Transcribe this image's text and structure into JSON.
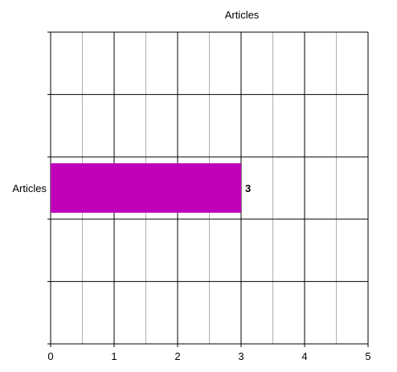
{
  "chart_data": {
    "type": "bar",
    "orientation": "horizontal",
    "title": "Articles",
    "categories": [
      "Articles"
    ],
    "series": [
      {
        "values": [
          3
        ],
        "color": "#C000B8"
      }
    ],
    "data_labels": [
      "3"
    ],
    "xlim": [
      0,
      5
    ],
    "x_ticks": [
      "0",
      "1",
      "2",
      "3",
      "4",
      "5"
    ],
    "grid": "on",
    "minor_grid": "on",
    "legend": "none"
  },
  "colors": {
    "major_grid": "#000000",
    "minor_grid": "#b0b0b0",
    "bar": "#C000B8"
  }
}
